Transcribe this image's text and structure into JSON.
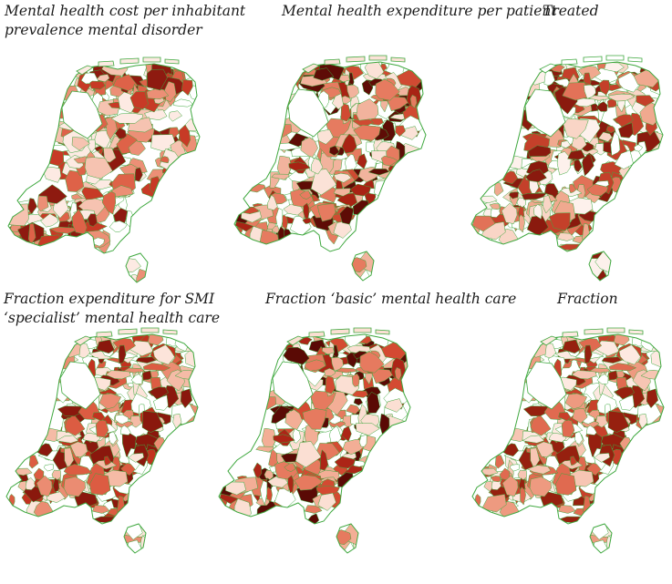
{
  "figure": {
    "panels": [
      {
        "caption": [
          "Mental health cost per inhabitant",
          "prevalence mental disorder"
        ],
        "palette": [
          "#fdeae3",
          "#f6c3b1",
          "#ec8f76",
          "#de6248",
          "#c73a26",
          "#8e1a10",
          "#ffffff"
        ]
      },
      {
        "caption": [
          "Mental health expenditure per patient"
        ],
        "palette": [
          "#fbe2d7",
          "#f2b39d",
          "#e67b60",
          "#d04a32",
          "#a82314",
          "#5e0c06",
          "#ffffff"
        ]
      },
      {
        "caption": [
          "Treated"
        ],
        "palette": [
          "#ffffff",
          "#fdf1ec",
          "#f9d5c6",
          "#f0a98f",
          "#e27258",
          "#c4402a",
          "#8a1a0e"
        ]
      },
      {
        "caption": [
          "Fraction expenditure for SMI",
          "‘specialist’ mental health care"
        ],
        "palette": [
          "#fce4da",
          "#f5bba6",
          "#eb8c72",
          "#dc5c42",
          "#c2321f",
          "#8a180d",
          "#ffffff"
        ]
      },
      {
        "caption": [
          "Fraction ‘basic’ mental health care"
        ],
        "palette": [
          "#fbdfd3",
          "#f3ae96",
          "#e67a5f",
          "#d44a32",
          "#ac2517",
          "#5a0a05",
          "#ffffff"
        ]
      },
      {
        "caption": [
          "Fraction"
        ],
        "palette": [
          "#fde9e1",
          "#f7c5b3",
          "#ee9a80",
          "#e06a50",
          "#c8402b",
          "#96200f",
          "#ffffff"
        ]
      }
    ],
    "border_color": "#3fa83f"
  }
}
